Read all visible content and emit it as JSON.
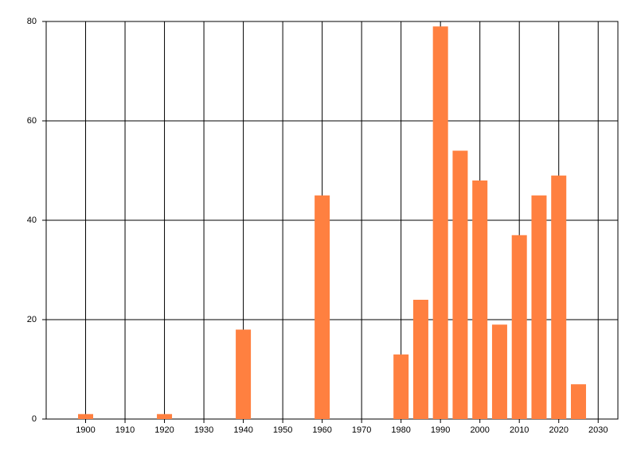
{
  "chart_data": {
    "type": "bar",
    "x": [
      1900,
      1920,
      1940,
      1960,
      1980,
      1985,
      1990,
      1995,
      2000,
      2005,
      2010,
      2015,
      2020,
      2025
    ],
    "values": [
      1,
      1,
      18,
      45,
      13,
      24,
      79,
      54,
      48,
      19,
      37,
      45,
      49,
      7
    ],
    "color": "#ff8040",
    "xlim": [
      1890,
      2035
    ],
    "xticks": [
      1900,
      1910,
      1920,
      1930,
      1940,
      1950,
      1960,
      1970,
      1980,
      1990,
      2000,
      2010,
      2020,
      2030
    ],
    "ylim": [
      0,
      80
    ],
    "yticks": [
      0,
      20,
      40,
      60,
      80
    ],
    "grid": true
  }
}
